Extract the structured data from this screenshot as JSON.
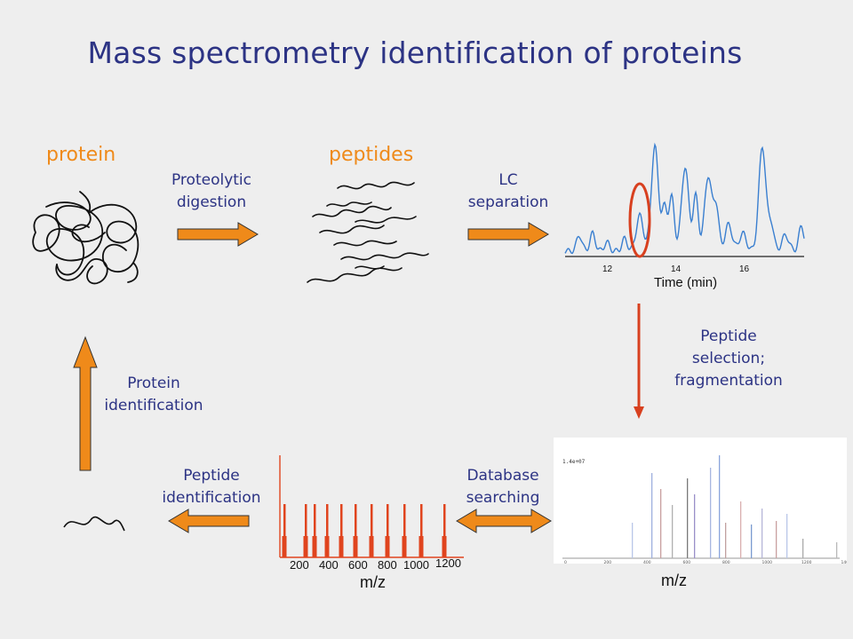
{
  "title": "Mass spectrometry identification of proteins",
  "labels": {
    "protein": "protein",
    "peptides": "peptides",
    "proteolytic_digestion": [
      "Proteolytic",
      "digestion"
    ],
    "lc_separation": [
      "LC",
      "separation"
    ],
    "peptide_selection": [
      "Peptide",
      "selection;",
      "fragmentation"
    ],
    "database_searching": [
      "Database",
      "searching"
    ],
    "peptide_identification": [
      "Peptide",
      "identification"
    ],
    "protein_identification": [
      "Protein",
      "identification"
    ]
  },
  "colors": {
    "title": "#2c3384",
    "accent": "#ef8a1a",
    "arrow_fill": "#ef8a1a",
    "arrow_stroke": "#333333",
    "chromatogram": "#3a7fd0",
    "highlight": "#d8401f",
    "spectrum_bar": "#e0441e"
  },
  "chromatogram": {
    "xlabel": "Time (min)",
    "ticks": [
      "12",
      "14",
      "16"
    ]
  },
  "spectrum": {
    "xlabel": "m/z",
    "ticks": [
      "200",
      "400",
      "600",
      "800",
      "1000",
      "1200"
    ]
  },
  "ms2": {
    "xlabel": "m/z",
    "header": "1.4e+07",
    "ticks": [
      "0",
      "200",
      "400",
      "600",
      "800",
      "1000",
      "1200",
      "1400"
    ]
  }
}
